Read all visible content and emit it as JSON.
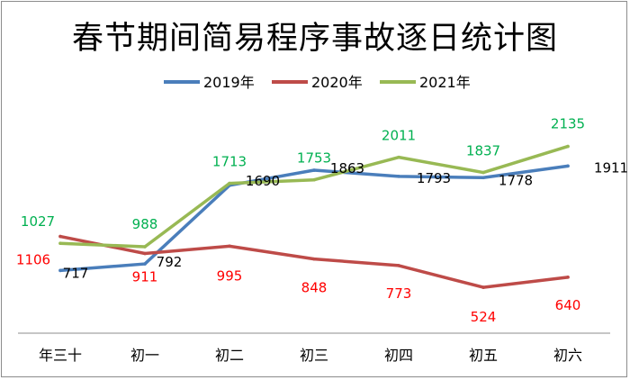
{
  "chart_data": {
    "type": "line",
    "title": "春节期间简易程序事故逐日统计图",
    "categories": [
      "年三十",
      "初一",
      "初二",
      "初三",
      "初四",
      "初五",
      "初六"
    ],
    "series": [
      {
        "name": "2019年",
        "color": "#4a7ebb",
        "label_color": "#000000",
        "values": [
          717,
          792,
          1690,
          1863,
          1793,
          1778,
          1911
        ]
      },
      {
        "name": "2020年",
        "color": "#be4b48",
        "label_color": "#ff0000",
        "values": [
          1106,
          911,
          995,
          848,
          773,
          524,
          640
        ]
      },
      {
        "name": "2021年",
        "color": "#98b954",
        "label_color": "#00b050",
        "values": [
          1027,
          988,
          1713,
          1753,
          2011,
          1837,
          2135
        ]
      }
    ],
    "ylim": [
      0,
      2800
    ],
    "xlabel": "",
    "ylabel": "",
    "grid": false,
    "legend_position": "top"
  }
}
